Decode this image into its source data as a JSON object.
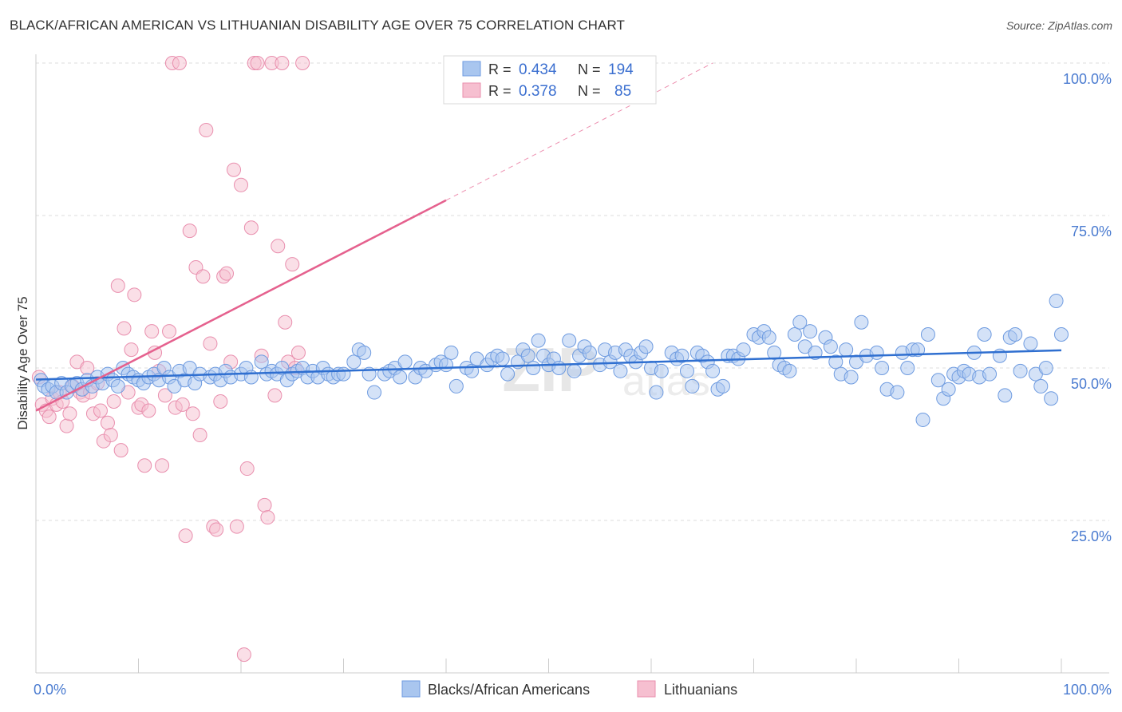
{
  "title": "BLACK/AFRICAN AMERICAN VS LITHUANIAN DISABILITY AGE OVER 75 CORRELATION CHART",
  "source": "Source: ZipAtlas.com",
  "watermark": "ZIPatlas",
  "colors": {
    "blue_fill": "#a9c6ef",
    "blue_stroke": "#6e9be0",
    "blue_line": "#2f6fd0",
    "pink_fill": "#f6bfd0",
    "pink_stroke": "#e98fae",
    "pink_line": "#e5618e",
    "axis_text": "#4a7bd0",
    "grid": "#dddddd"
  },
  "legend": {
    "r_label": "R =",
    "n_label": "N =",
    "blue": {
      "r": "0.434",
      "n": "194"
    },
    "pink": {
      "r": "0.378",
      "n": "85"
    }
  },
  "bottom_legend": {
    "blue": "Blacks/African Americans",
    "pink": "Lithuanians"
  },
  "chart_data": {
    "type": "scatter",
    "title": "BLACK/AFRICAN AMERICAN VS LITHUANIAN DISABILITY AGE OVER 75 CORRELATION CHART",
    "xlabel": "",
    "ylabel": "Disability Age Over 75",
    "xlim": [
      0,
      100
    ],
    "ylim": [
      0,
      100
    ],
    "x_tick_labels": [
      "0.0%",
      "100.0%"
    ],
    "y_tick_labels": [
      "25.0%",
      "50.0%",
      "75.0%",
      "100.0%"
    ],
    "y_ticks": [
      25,
      50,
      75,
      100
    ],
    "grid": true,
    "legend_position": "top-center",
    "series": [
      {
        "name": "Blacks/African Americans",
        "color": "#a9c6ef",
        "trend": {
          "x0": 0,
          "y0": 48.1,
          "x1": 100,
          "y1": 52.9
        },
        "points": [
          [
            0.5,
            48
          ],
          [
            0.8,
            47
          ],
          [
            1.2,
            46.5
          ],
          [
            1.6,
            47
          ],
          [
            2,
            46
          ],
          [
            2.5,
            47.5
          ],
          [
            3,
            46
          ],
          [
            3.5,
            47
          ],
          [
            4,
            47.5
          ],
          [
            4.5,
            46.5
          ],
          [
            5,
            48
          ],
          [
            5.5,
            47
          ],
          [
            6,
            48.5
          ],
          [
            6.5,
            47.5
          ],
          [
            7,
            49
          ],
          [
            7.5,
            48
          ],
          [
            8,
            47
          ],
          [
            8.5,
            50
          ],
          [
            9,
            49
          ],
          [
            9.5,
            48.5
          ],
          [
            10,
            48
          ],
          [
            10.5,
            47.5
          ],
          [
            11,
            48.5
          ],
          [
            11.5,
            49
          ],
          [
            12,
            48
          ],
          [
            12.5,
            50
          ],
          [
            13,
            48.5
          ],
          [
            13.5,
            47
          ],
          [
            14,
            49.5
          ],
          [
            14.5,
            48
          ],
          [
            15,
            50
          ],
          [
            15.5,
            47.5
          ],
          [
            16,
            49
          ],
          [
            17,
            48.5
          ],
          [
            17.5,
            49
          ],
          [
            18,
            48
          ],
          [
            18.5,
            49.5
          ],
          [
            19,
            48.5
          ],
          [
            20,
            49
          ],
          [
            20.5,
            50
          ],
          [
            21,
            48.5
          ],
          [
            22,
            51
          ],
          [
            22.5,
            49
          ],
          [
            23,
            49.5
          ],
          [
            23.5,
            49
          ],
          [
            24,
            50
          ],
          [
            24.5,
            48
          ],
          [
            25,
            49
          ],
          [
            25.5,
            49.5
          ],
          [
            26,
            50
          ],
          [
            26.5,
            48.5
          ],
          [
            27,
            49.5
          ],
          [
            27.5,
            48.5
          ],
          [
            28,
            50
          ],
          [
            28.5,
            49
          ],
          [
            29,
            48.5
          ],
          [
            29.5,
            49
          ],
          [
            30,
            49
          ],
          [
            31,
            51
          ],
          [
            31.5,
            53
          ],
          [
            32,
            52.5
          ],
          [
            32.5,
            49
          ],
          [
            33,
            46
          ],
          [
            34,
            49
          ],
          [
            34.5,
            49.5
          ],
          [
            35,
            50
          ],
          [
            35.5,
            48.5
          ],
          [
            36,
            51
          ],
          [
            37,
            48.5
          ],
          [
            37.5,
            50
          ],
          [
            38,
            49.5
          ],
          [
            39,
            50.5
          ],
          [
            39.5,
            51
          ],
          [
            40,
            50.5
          ],
          [
            40.5,
            52.5
          ],
          [
            41,
            47
          ],
          [
            42,
            50
          ],
          [
            42.5,
            49.5
          ],
          [
            43,
            51.5
          ],
          [
            44,
            50.5
          ],
          [
            44.5,
            51.5
          ],
          [
            45,
            52
          ],
          [
            45.5,
            51.5
          ],
          [
            46,
            49
          ],
          [
            47,
            51
          ],
          [
            47.5,
            53
          ],
          [
            48,
            52
          ],
          [
            48.5,
            50
          ],
          [
            49,
            54.5
          ],
          [
            49.5,
            52
          ],
          [
            50,
            50.5
          ],
          [
            50.5,
            51.5
          ],
          [
            51,
            50
          ],
          [
            52,
            54.5
          ],
          [
            52.5,
            49.5
          ],
          [
            53,
            52
          ],
          [
            53.5,
            53.5
          ],
          [
            54,
            52.5
          ],
          [
            55,
            50.5
          ],
          [
            55.5,
            53
          ],
          [
            56,
            51
          ],
          [
            56.5,
            52.5
          ],
          [
            57,
            49.5
          ],
          [
            57.5,
            53
          ],
          [
            58,
            52
          ],
          [
            58.5,
            51
          ],
          [
            59,
            52.5
          ],
          [
            59.5,
            53.5
          ],
          [
            60,
            50
          ],
          [
            60.5,
            46
          ],
          [
            61,
            49.5
          ],
          [
            62,
            52.5
          ],
          [
            62.5,
            51.5
          ],
          [
            63,
            52
          ],
          [
            63.5,
            49.5
          ],
          [
            64,
            47
          ],
          [
            64.5,
            52.5
          ],
          [
            65,
            52
          ],
          [
            65.5,
            51
          ],
          [
            66,
            49.5
          ],
          [
            66.5,
            46.5
          ],
          [
            67,
            47
          ],
          [
            67.5,
            52
          ],
          [
            68,
            52
          ],
          [
            68.5,
            51.5
          ],
          [
            69,
            53
          ],
          [
            70,
            55.5
          ],
          [
            70.5,
            55
          ],
          [
            71,
            56
          ],
          [
            71.5,
            55
          ],
          [
            72,
            52.5
          ],
          [
            72.5,
            50.5
          ],
          [
            73,
            50
          ],
          [
            73.5,
            49.5
          ],
          [
            74,
            55.5
          ],
          [
            74.5,
            57.5
          ],
          [
            75,
            53.5
          ],
          [
            75.5,
            56
          ],
          [
            76,
            52.5
          ],
          [
            77,
            55
          ],
          [
            77.5,
            53.5
          ],
          [
            78,
            51
          ],
          [
            78.5,
            49
          ],
          [
            79,
            53
          ],
          [
            79.5,
            48.5
          ],
          [
            80,
            51
          ],
          [
            80.5,
            57.5
          ],
          [
            81,
            52
          ],
          [
            82,
            52.5
          ],
          [
            82.5,
            50
          ],
          [
            83,
            46.5
          ],
          [
            84,
            46
          ],
          [
            84.5,
            52.5
          ],
          [
            85,
            50
          ],
          [
            85.5,
            53
          ],
          [
            86,
            53
          ],
          [
            86.5,
            41.5
          ],
          [
            87,
            55.5
          ],
          [
            88,
            48
          ],
          [
            88.5,
            45
          ],
          [
            89,
            46.5
          ],
          [
            89.5,
            49
          ],
          [
            90,
            48.5
          ],
          [
            90.5,
            49.5
          ],
          [
            91,
            49
          ],
          [
            91.5,
            52.5
          ],
          [
            92,
            48.5
          ],
          [
            92.5,
            55.5
          ],
          [
            93,
            49
          ],
          [
            94,
            52
          ],
          [
            94.5,
            45.5
          ],
          [
            95,
            55
          ],
          [
            95.5,
            55.5
          ],
          [
            96,
            49.5
          ],
          [
            97,
            54
          ],
          [
            97.5,
            49
          ],
          [
            98,
            47
          ],
          [
            98.5,
            50
          ],
          [
            99,
            45
          ],
          [
            99.5,
            61
          ],
          [
            100,
            55.5
          ]
        ]
      },
      {
        "name": "Lithuanians",
        "color": "#f6bfd0",
        "trend": {
          "x0": 0,
          "y0": 43,
          "x1": 40,
          "y1": 77.5
        },
        "trend_dashed_to": {
          "x": 66,
          "y": 100
        },
        "points": [
          [
            0.3,
            48.5
          ],
          [
            0.6,
            44
          ],
          [
            1,
            43
          ],
          [
            1.3,
            42
          ],
          [
            1.6,
            45
          ],
          [
            2,
            44
          ],
          [
            2.3,
            46
          ],
          [
            2.6,
            44.5
          ],
          [
            3,
            40.5
          ],
          [
            3.3,
            42.5
          ],
          [
            3.6,
            47
          ],
          [
            4,
            51
          ],
          [
            4.3,
            46
          ],
          [
            4.6,
            45.5
          ],
          [
            5,
            50
          ],
          [
            5.3,
            46
          ],
          [
            5.6,
            42.5
          ],
          [
            6,
            47.5
          ],
          [
            6.3,
            43
          ],
          [
            6.6,
            38
          ],
          [
            7,
            41
          ],
          [
            7.3,
            39
          ],
          [
            7.6,
            44.5
          ],
          [
            8,
            63.5
          ],
          [
            8.3,
            36.5
          ],
          [
            8.6,
            56.5
          ],
          [
            9,
            46
          ],
          [
            9.3,
            53
          ],
          [
            9.6,
            62
          ],
          [
            10,
            43.5
          ],
          [
            10.3,
            44
          ],
          [
            10.6,
            34
          ],
          [
            11,
            43
          ],
          [
            11.3,
            56
          ],
          [
            11.6,
            52.5
          ],
          [
            12,
            49.5
          ],
          [
            12.3,
            34
          ],
          [
            12.6,
            45.5
          ],
          [
            13,
            56
          ],
          [
            13.3,
            100
          ],
          [
            13.6,
            43.5
          ],
          [
            14,
            100
          ],
          [
            14.3,
            44
          ],
          [
            14.6,
            22.5
          ],
          [
            15,
            72.5
          ],
          [
            15.3,
            42.5
          ],
          [
            15.6,
            66.5
          ],
          [
            16,
            39
          ],
          [
            16.3,
            65
          ],
          [
            16.6,
            89
          ],
          [
            17,
            54
          ],
          [
            17.3,
            24
          ],
          [
            17.6,
            23.5
          ],
          [
            18,
            44.5
          ],
          [
            18.3,
            65
          ],
          [
            18.6,
            65.5
          ],
          [
            19,
            51
          ],
          [
            19.3,
            82.5
          ],
          [
            19.6,
            24
          ],
          [
            20,
            80
          ],
          [
            20.3,
            3
          ],
          [
            20.6,
            33.5
          ],
          [
            21,
            73
          ],
          [
            21.3,
            100
          ],
          [
            21.6,
            100
          ],
          [
            22,
            52
          ],
          [
            22.3,
            27.5
          ],
          [
            22.6,
            25.5
          ],
          [
            23,
            100
          ],
          [
            23.3,
            45.5
          ],
          [
            23.6,
            70
          ],
          [
            24,
            100
          ],
          [
            24.3,
            57.5
          ],
          [
            24.6,
            51
          ],
          [
            25,
            67
          ],
          [
            25.3,
            50
          ],
          [
            25.6,
            52.5
          ],
          [
            26,
            100
          ]
        ]
      }
    ]
  }
}
